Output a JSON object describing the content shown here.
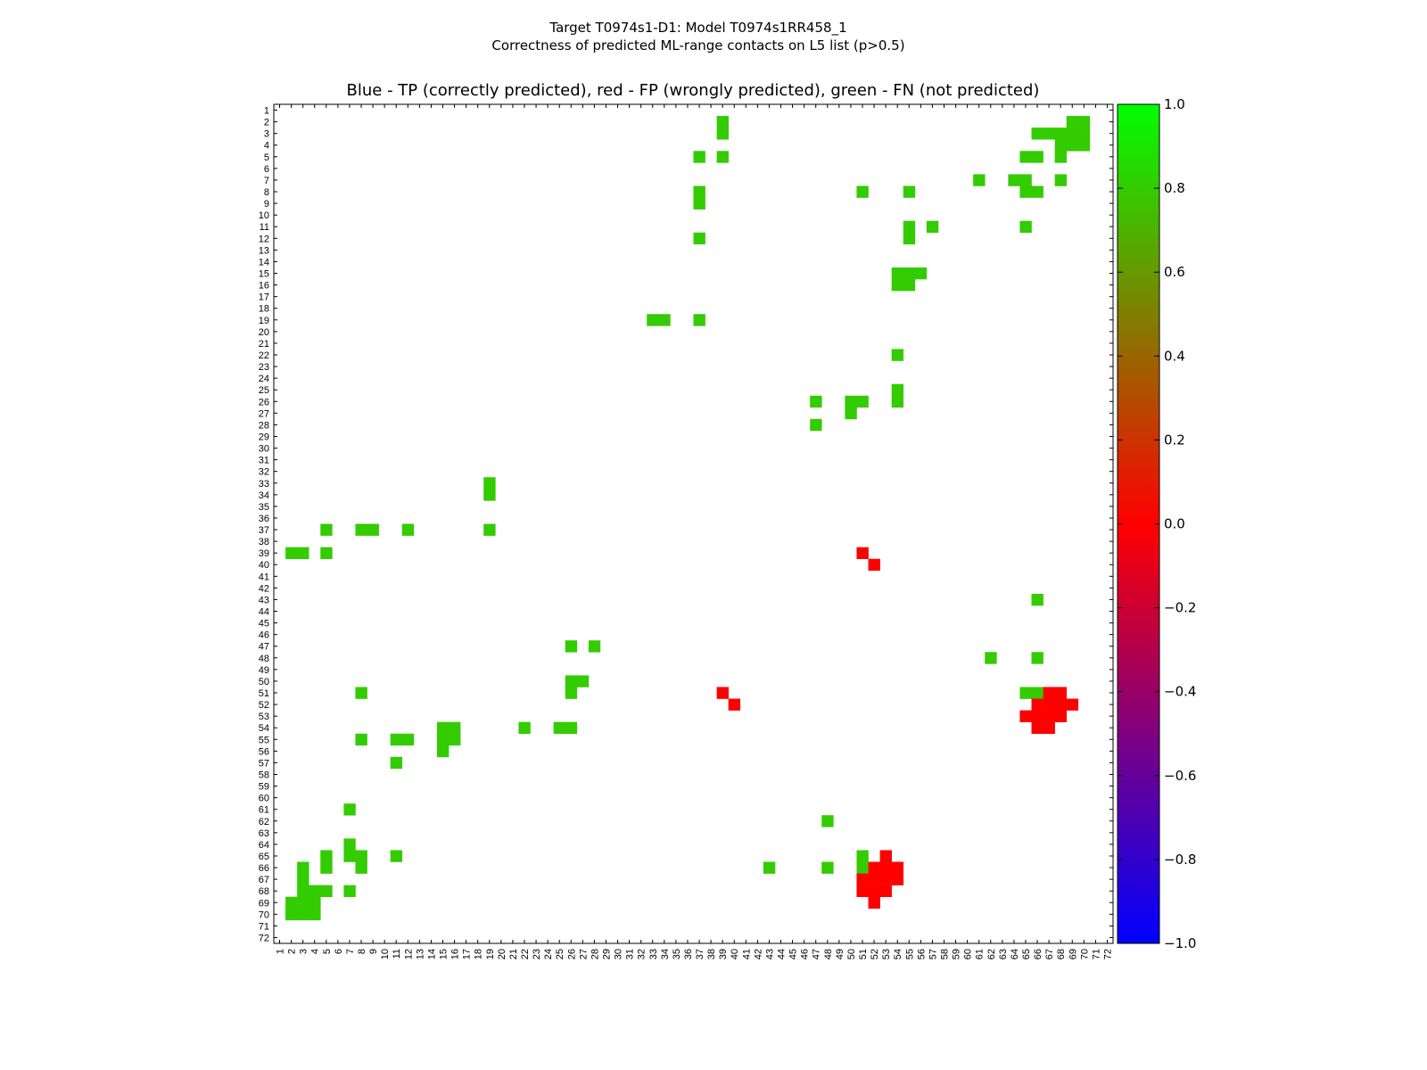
{
  "chart_data": {
    "type": "heatmap",
    "title_lines": [
      "Target T0974s1-D1: Model T0974s1RR458_1",
      "Correctness of predicted ML-range contacts on L5 list (p>0.5)"
    ],
    "subtitle": "Blue - TP (correctly predicted), red - FP (wrongly predicted), green - FN (not predicted)",
    "n": 72,
    "tick_labels": [
      "1",
      "2",
      "3",
      "4",
      "5",
      "6",
      "7",
      "8",
      "9",
      "10",
      "11",
      "12",
      "13",
      "14",
      "15",
      "16",
      "17",
      "18",
      "19",
      "20",
      "21",
      "22",
      "23",
      "24",
      "25",
      "26",
      "27",
      "28",
      "29",
      "30",
      "31",
      "32",
      "33",
      "34",
      "35",
      "36",
      "37",
      "38",
      "39",
      "40",
      "41",
      "42",
      "43",
      "44",
      "45",
      "46",
      "47",
      "48",
      "49",
      "50",
      "51",
      "52",
      "53",
      "54",
      "55",
      "56",
      "57",
      "58",
      "59",
      "60",
      "61",
      "62",
      "63",
      "64",
      "65",
      "66",
      "67",
      "68",
      "69",
      "70",
      "71",
      "72"
    ],
    "symmetric": true,
    "value_range": [
      -1.0,
      1.0
    ],
    "colormap": {
      "-1.0": "#0000ff",
      "0.0": "#ff0000",
      "1.0": "#00ff00"
    },
    "colorbar_ticks": [
      "1.0",
      "0.8",
      "0.6",
      "0.4",
      "0.2",
      "0.0",
      "−0.2",
      "−0.4",
      "−0.6",
      "−0.8",
      "−1.0"
    ],
    "colorbar_values": [
      1.0,
      0.8,
      0.6,
      0.4,
      0.2,
      0.0,
      -0.2,
      -0.4,
      -0.6,
      -0.8,
      -1.0
    ],
    "cells": [
      [
        2,
        39,
        0.8
      ],
      [
        3,
        39,
        0.8
      ],
      [
        5,
        39,
        0.8
      ],
      [
        2,
        69,
        0.8
      ],
      [
        2,
        70,
        0.8
      ],
      [
        3,
        66,
        0.8
      ],
      [
        3,
        67,
        0.8
      ],
      [
        3,
        68,
        0.8
      ],
      [
        3,
        69,
        0.8
      ],
      [
        3,
        70,
        0.8
      ],
      [
        4,
        68,
        0.8
      ],
      [
        4,
        69,
        0.8
      ],
      [
        4,
        70,
        0.8
      ],
      [
        5,
        37,
        0.8
      ],
      [
        5,
        65,
        0.8
      ],
      [
        5,
        66,
        0.8
      ],
      [
        5,
        68,
        0.8
      ],
      [
        7,
        61,
        0.8
      ],
      [
        7,
        64,
        0.8
      ],
      [
        7,
        65,
        0.8
      ],
      [
        7,
        68,
        0.8
      ],
      [
        8,
        37,
        0.8
      ],
      [
        8,
        51,
        0.8
      ],
      [
        8,
        55,
        0.8
      ],
      [
        8,
        65,
        0.8
      ],
      [
        8,
        66,
        0.8
      ],
      [
        9,
        37,
        0.8
      ],
      [
        11,
        55,
        0.8
      ],
      [
        11,
        57,
        0.8
      ],
      [
        11,
        65,
        0.8
      ],
      [
        12,
        55,
        0.8
      ],
      [
        12,
        37,
        0.8
      ],
      [
        15,
        54,
        0.8
      ],
      [
        15,
        55,
        0.8
      ],
      [
        15,
        56,
        0.8
      ],
      [
        16,
        54,
        0.8
      ],
      [
        16,
        55,
        0.8
      ],
      [
        19,
        33,
        0.8
      ],
      [
        19,
        34,
        0.8
      ],
      [
        19,
        37,
        0.8
      ],
      [
        22,
        54,
        0.8
      ],
      [
        25,
        54,
        0.8
      ],
      [
        26,
        54,
        0.8
      ],
      [
        26,
        47,
        0.8
      ],
      [
        26,
        50,
        0.8
      ],
      [
        26,
        51,
        0.8
      ],
      [
        27,
        50,
        0.8
      ],
      [
        28,
        47,
        0.8
      ],
      [
        43,
        66,
        0.8
      ],
      [
        48,
        62,
        0.8
      ],
      [
        48,
        66,
        0.8
      ],
      [
        51,
        65,
        0.8
      ],
      [
        51,
        66,
        0.8
      ],
      [
        39,
        51,
        0.0
      ],
      [
        40,
        52,
        0.0
      ],
      [
        51,
        67,
        0.0
      ],
      [
        51,
        68,
        0.0
      ],
      [
        52,
        66,
        0.0
      ],
      [
        52,
        67,
        0.0
      ],
      [
        52,
        68,
        0.0
      ],
      [
        52,
        69,
        0.0
      ],
      [
        53,
        65,
        0.0
      ],
      [
        53,
        66,
        0.0
      ],
      [
        53,
        67,
        0.0
      ],
      [
        53,
        68,
        0.0
      ],
      [
        54,
        66,
        0.0
      ],
      [
        54,
        67,
        0.0
      ]
    ]
  }
}
